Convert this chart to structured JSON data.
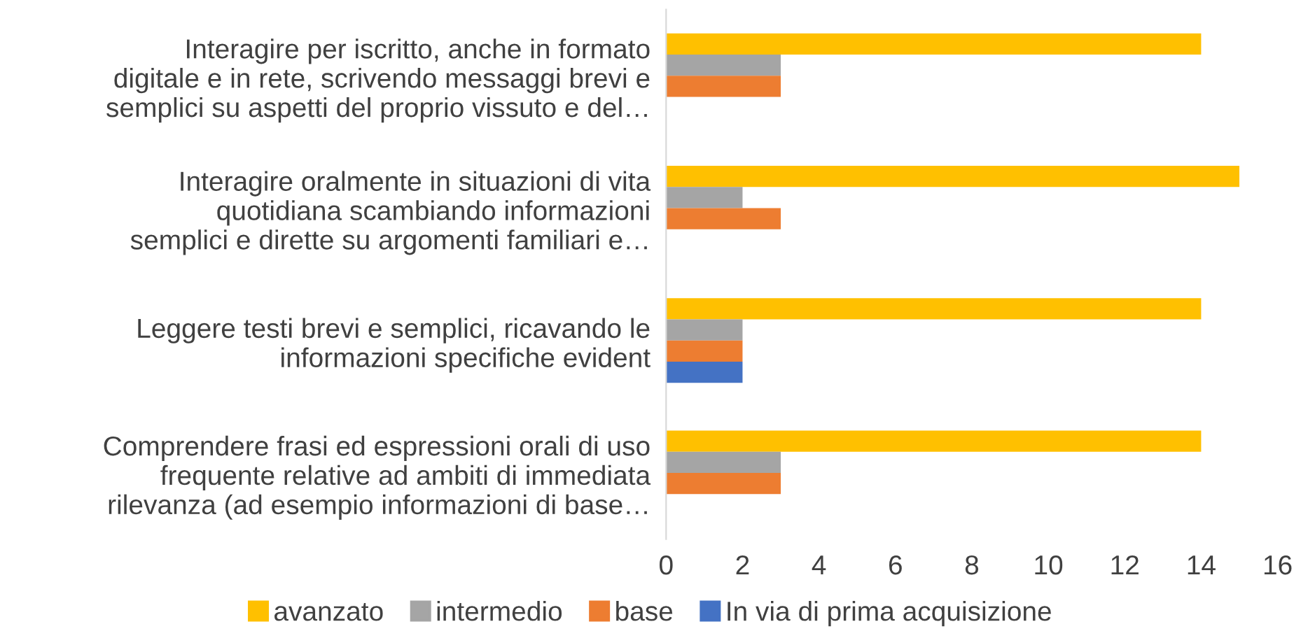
{
  "chart_data": {
    "type": "bar",
    "orientation": "horizontal",
    "categories": [
      "Interagire per iscritto, anche in formato\ndigitale e in rete, scrivendo messaggi brevi e\nsemplici su aspetti del proprio vissuto e del…",
      "Interagire oralmente in situazioni di vita\nquotidiana scambiando informazioni\nsemplici e dirette su argomenti familiari e…",
      "Leggere testi brevi e semplici, ricavando le\ninformazioni specifiche evident",
      "Comprendere frasi ed espressioni orali di uso\nfrequente relative ad ambiti di immediata\nrilevanza (ad esempio informazioni di base…"
    ],
    "series": [
      {
        "name": "avanzato",
        "color": "#ffc000",
        "values": [
          14,
          15,
          14,
          14
        ]
      },
      {
        "name": "intermedio",
        "color": "#a5a5a5",
        "values": [
          3,
          2,
          2,
          3
        ]
      },
      {
        "name": "base",
        "color": "#ed7d31",
        "values": [
          3,
          3,
          2,
          3
        ]
      },
      {
        "name": "In via di prima acquisizione",
        "color": "#4472c4",
        "values": [
          null,
          null,
          2,
          null
        ]
      }
    ],
    "xlim": [
      0,
      16
    ],
    "xticks": [
      0,
      2,
      4,
      6,
      8,
      10,
      12,
      14,
      16
    ],
    "grid": false,
    "legend": "bottom"
  }
}
